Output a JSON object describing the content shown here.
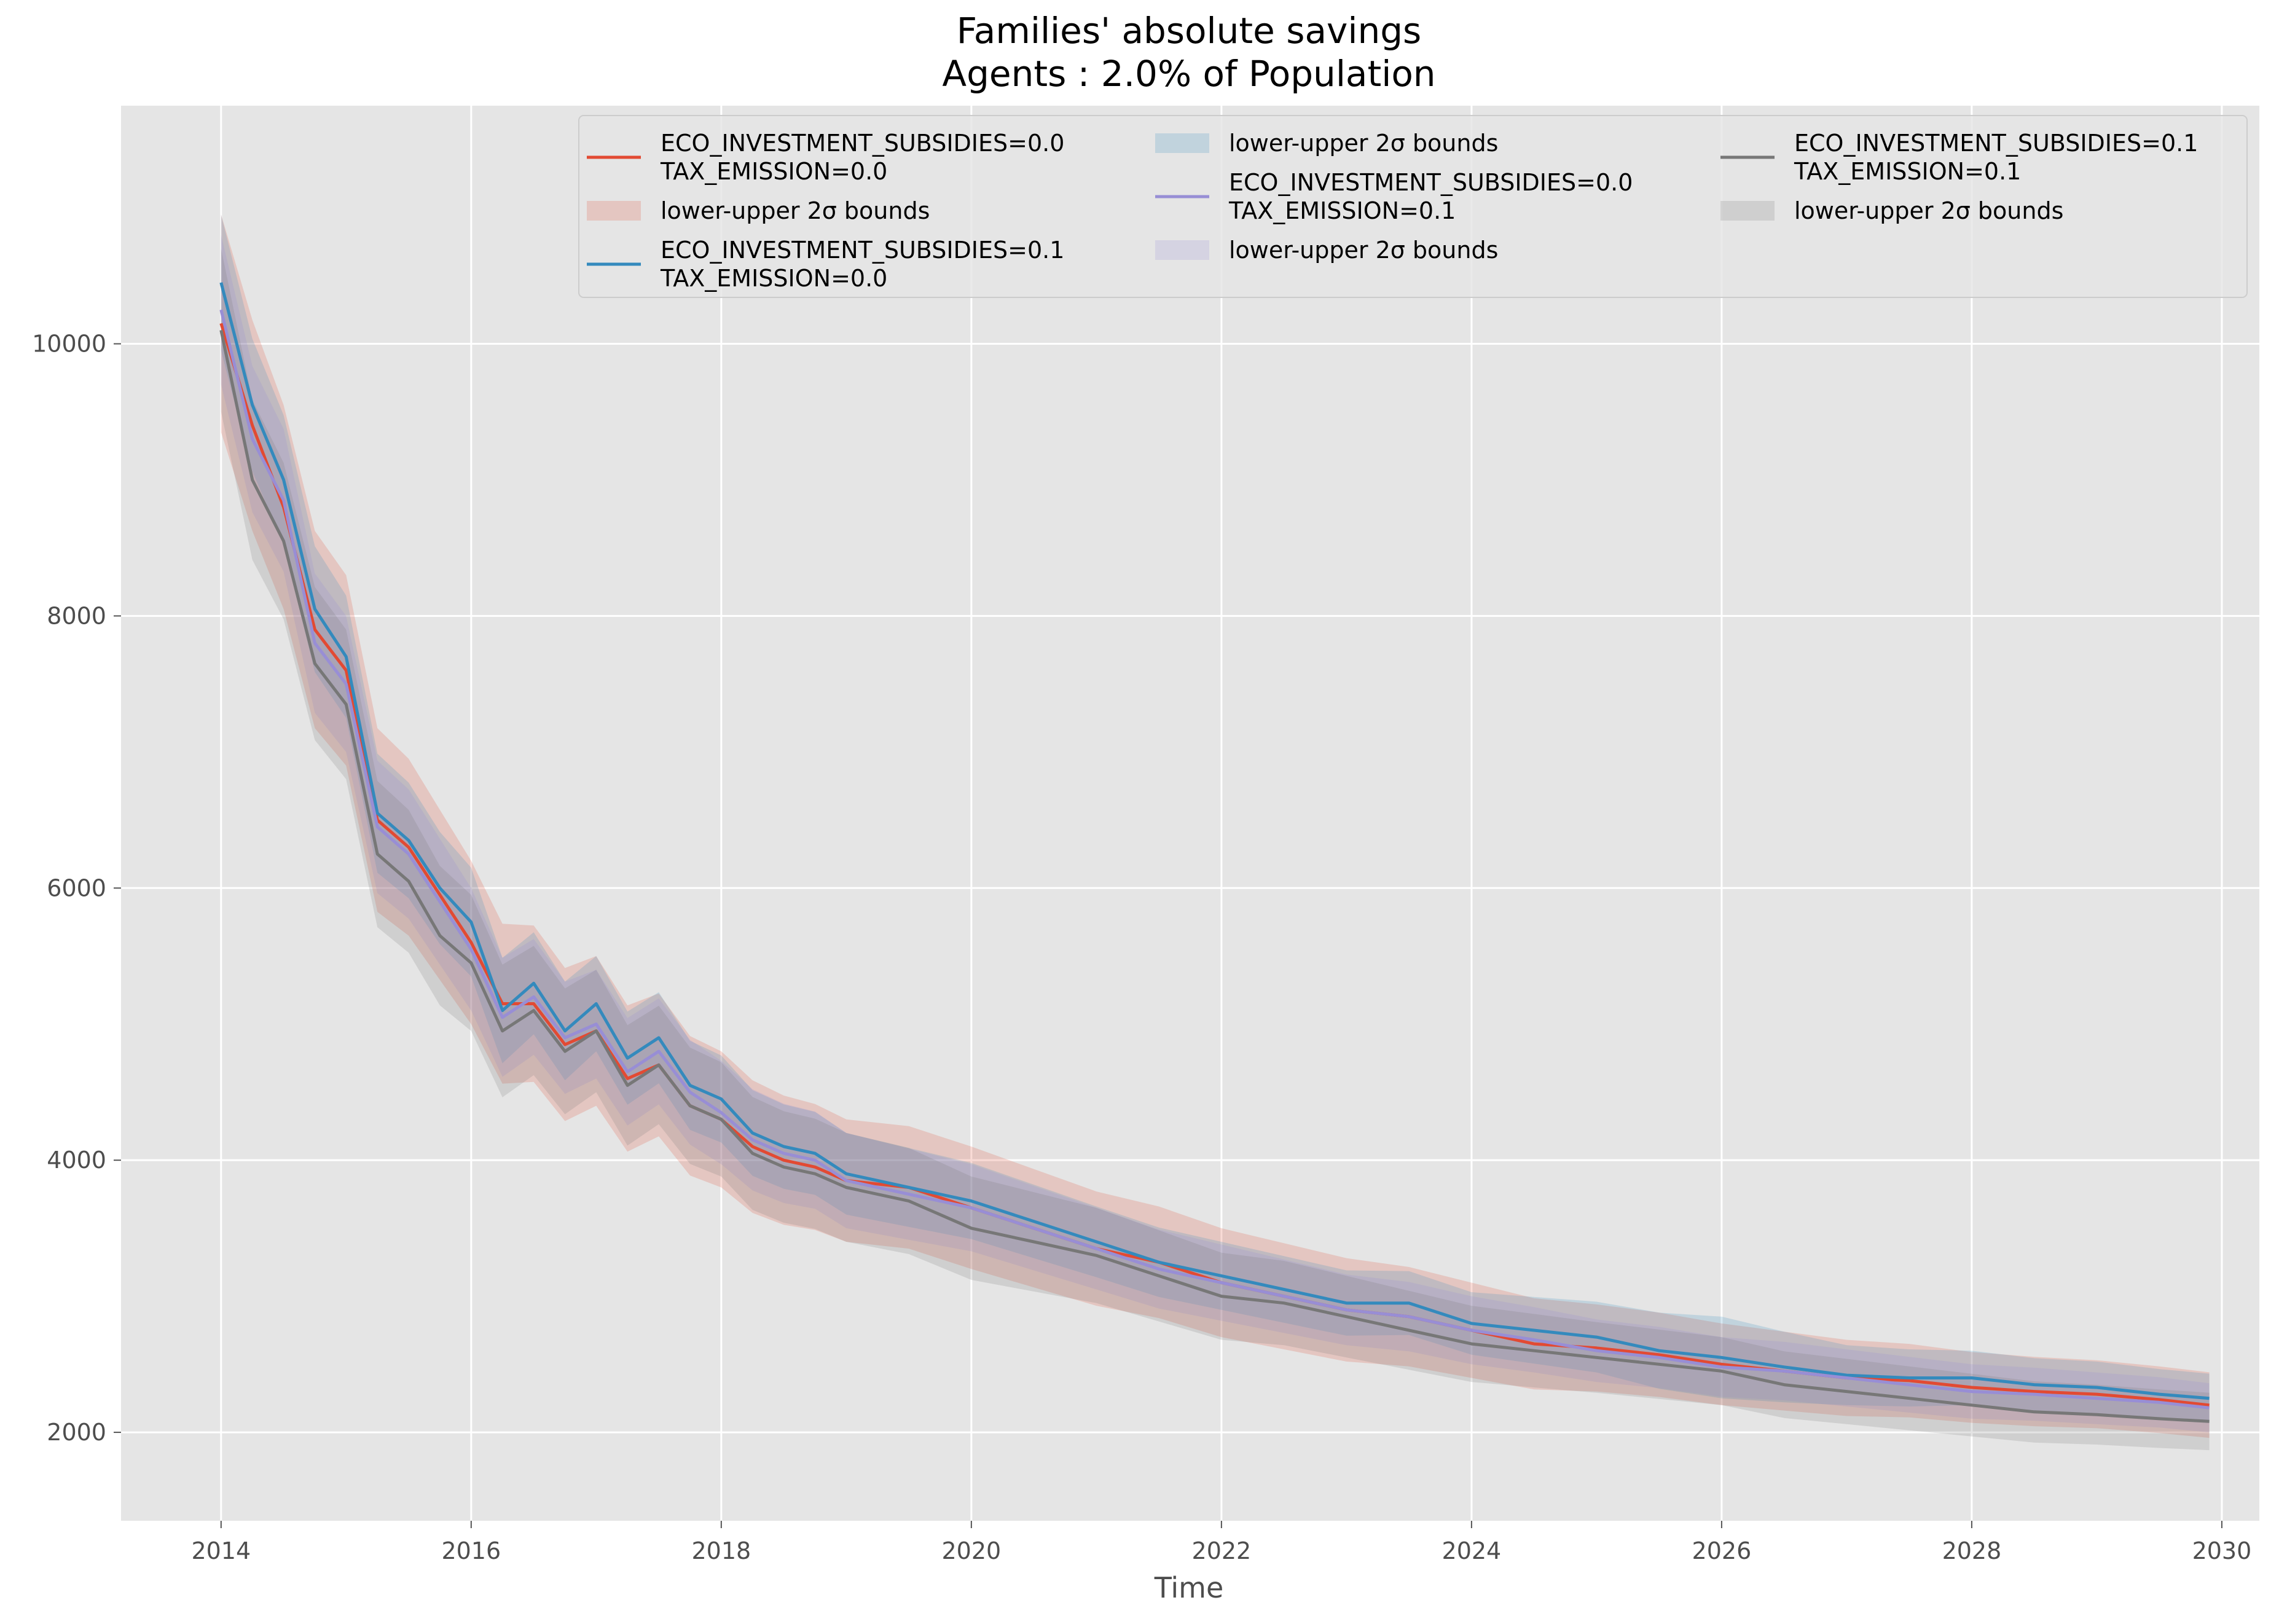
{
  "chart_data": {
    "type": "line",
    "title": "Families' absolute savings",
    "subtitle": "Agents : 2.0% of Population",
    "xlabel": "Time",
    "ylabel": "",
    "xlim": [
      2013.2,
      2030.3
    ],
    "ylim": [
      1350,
      11750
    ],
    "xticks": [
      2014,
      2016,
      2018,
      2020,
      2022,
      2024,
      2026,
      2028,
      2030
    ],
    "yticks": [
      2000,
      4000,
      6000,
      8000,
      10000
    ],
    "grid": true,
    "legend": {
      "placement": "top-right",
      "columns": 3
    },
    "series": [
      {
        "label_lines": [
          "ECO_INVESTMENT_SUBSIDIES=0.0",
          "TAX_EMISSION=0.0"
        ],
        "band_label": "lower-upper 2σ bounds",
        "color": "#e24a33",
        "band_color": "#e24a33",
        "band_opacity": 0.2,
        "band_halfwidth": [
          800,
          700,
          600,
          550,
          500,
          450,
          450,
          420,
          400,
          380,
          350,
          320,
          300,
          280,
          260,
          250,
          240
        ],
        "points": [
          [
            2014.0,
            10150
          ],
          [
            2014.25,
            9400
          ],
          [
            2014.5,
            8800
          ],
          [
            2014.75,
            7900
          ],
          [
            2015.0,
            7600
          ],
          [
            2015.25,
            6500
          ],
          [
            2015.5,
            6300
          ],
          [
            2015.75,
            5950
          ],
          [
            2016.0,
            5600
          ],
          [
            2016.25,
            5150
          ],
          [
            2016.5,
            5150
          ],
          [
            2016.75,
            4850
          ],
          [
            2017.0,
            4950
          ],
          [
            2017.25,
            4600
          ],
          [
            2017.5,
            4700
          ],
          [
            2017.75,
            4400
          ],
          [
            2018.0,
            4300
          ],
          [
            2018.25,
            4100
          ],
          [
            2018.5,
            4000
          ],
          [
            2018.75,
            3950
          ],
          [
            2019.0,
            3850
          ],
          [
            2019.5,
            3800
          ],
          [
            2020.0,
            3650
          ],
          [
            2020.5,
            3500
          ],
          [
            2021.0,
            3350
          ],
          [
            2021.5,
            3250
          ],
          [
            2022.0,
            3100
          ],
          [
            2022.5,
            3000
          ],
          [
            2023.0,
            2900
          ],
          [
            2023.5,
            2850
          ],
          [
            2024.0,
            2750
          ],
          [
            2024.5,
            2650
          ],
          [
            2025.0,
            2620
          ],
          [
            2025.5,
            2570
          ],
          [
            2026.0,
            2500
          ],
          [
            2026.5,
            2450
          ],
          [
            2027.0,
            2400
          ],
          [
            2027.5,
            2380
          ],
          [
            2028.0,
            2330
          ],
          [
            2028.5,
            2300
          ],
          [
            2029.0,
            2280
          ],
          [
            2029.5,
            2240
          ],
          [
            2029.9,
            2200
          ]
        ]
      },
      {
        "label_lines": [
          "ECO_INVESTMENT_SUBSIDIES=0.1",
          "TAX_EMISSION=0.0"
        ],
        "band_label": "lower-upper 2σ bounds",
        "color": "#348abd",
        "band_color": "#348abd",
        "band_opacity": 0.2,
        "band_halfwidth": [
          500,
          450,
          400,
          350,
          320,
          300,
          280,
          260,
          250,
          240,
          230,
          260,
          300,
          220,
          200,
          190,
          180
        ],
        "points": [
          [
            2014.0,
            10450
          ],
          [
            2014.25,
            9550
          ],
          [
            2014.5,
            9000
          ],
          [
            2014.75,
            8050
          ],
          [
            2015.0,
            7700
          ],
          [
            2015.25,
            6550
          ],
          [
            2015.5,
            6350
          ],
          [
            2015.75,
            6000
          ],
          [
            2016.0,
            5750
          ],
          [
            2016.25,
            5100
          ],
          [
            2016.5,
            5300
          ],
          [
            2016.75,
            4950
          ],
          [
            2017.0,
            5150
          ],
          [
            2017.25,
            4750
          ],
          [
            2017.5,
            4900
          ],
          [
            2017.75,
            4550
          ],
          [
            2018.0,
            4450
          ],
          [
            2018.25,
            4200
          ],
          [
            2018.5,
            4100
          ],
          [
            2018.75,
            4050
          ],
          [
            2019.0,
            3900
          ],
          [
            2019.5,
            3800
          ],
          [
            2020.0,
            3700
          ],
          [
            2020.5,
            3550
          ],
          [
            2021.0,
            3400
          ],
          [
            2021.5,
            3250
          ],
          [
            2022.0,
            3150
          ],
          [
            2022.5,
            3050
          ],
          [
            2023.0,
            2950
          ],
          [
            2023.5,
            2950
          ],
          [
            2024.0,
            2800
          ],
          [
            2024.5,
            2750
          ],
          [
            2025.0,
            2700
          ],
          [
            2025.5,
            2600
          ],
          [
            2026.0,
            2550
          ],
          [
            2026.5,
            2480
          ],
          [
            2027.0,
            2420
          ],
          [
            2027.5,
            2400
          ],
          [
            2028.0,
            2400
          ],
          [
            2028.5,
            2350
          ],
          [
            2029.0,
            2330
          ],
          [
            2029.5,
            2280
          ],
          [
            2029.9,
            2250
          ]
        ]
      },
      {
        "label_lines": [
          "ECO_INVESTMENT_SUBSIDIES=0.0",
          "TAX_EMISSION=0.1"
        ],
        "band_label": "lower-upper 2σ bounds",
        "color": "#988ed5",
        "band_color": "#988ed5",
        "band_opacity": 0.2,
        "band_halfwidth": [
          550,
          500,
          450,
          400,
          380,
          350,
          320,
          300,
          280,
          260,
          250,
          230,
          220,
          210,
          200,
          190,
          180
        ],
        "points": [
          [
            2014.0,
            10250
          ],
          [
            2014.25,
            9300
          ],
          [
            2014.5,
            8850
          ],
          [
            2014.75,
            7800
          ],
          [
            2015.0,
            7500
          ],
          [
            2015.25,
            6450
          ],
          [
            2015.5,
            6250
          ],
          [
            2015.75,
            5900
          ],
          [
            2016.0,
            5550
          ],
          [
            2016.25,
            5050
          ],
          [
            2016.5,
            5200
          ],
          [
            2016.75,
            4900
          ],
          [
            2017.0,
            5000
          ],
          [
            2017.25,
            4650
          ],
          [
            2017.5,
            4800
          ],
          [
            2017.75,
            4500
          ],
          [
            2018.0,
            4350
          ],
          [
            2018.25,
            4150
          ],
          [
            2018.5,
            4050
          ],
          [
            2018.75,
            4000
          ],
          [
            2019.0,
            3850
          ],
          [
            2019.5,
            3750
          ],
          [
            2020.0,
            3650
          ],
          [
            2020.5,
            3500
          ],
          [
            2021.0,
            3350
          ],
          [
            2021.5,
            3200
          ],
          [
            2022.0,
            3100
          ],
          [
            2022.5,
            3000
          ],
          [
            2023.0,
            2900
          ],
          [
            2023.5,
            2850
          ],
          [
            2024.0,
            2750
          ],
          [
            2024.5,
            2680
          ],
          [
            2025.0,
            2600
          ],
          [
            2025.5,
            2550
          ],
          [
            2026.0,
            2480
          ],
          [
            2026.5,
            2450
          ],
          [
            2027.0,
            2400
          ],
          [
            2027.5,
            2350
          ],
          [
            2028.0,
            2300
          ],
          [
            2028.5,
            2280
          ],
          [
            2029.0,
            2250
          ],
          [
            2029.5,
            2220
          ],
          [
            2029.9,
            2180
          ]
        ]
      },
      {
        "label_lines": [
          "ECO_INVESTMENT_SUBSIDIES=0.1",
          "TAX_EMISSION=0.1"
        ],
        "band_label": "lower-upper 2σ bounds",
        "color": "#777777",
        "band_color": "#777777",
        "band_opacity": 0.2,
        "band_halfwidth": [
          600,
          550,
          500,
          450,
          420,
          400,
          380,
          350,
          320,
          300,
          280,
          260,
          250,
          240,
          230,
          220,
          210
        ],
        "points": [
          [
            2014.0,
            10100
          ],
          [
            2014.25,
            9000
          ],
          [
            2014.5,
            8550
          ],
          [
            2014.75,
            7650
          ],
          [
            2015.0,
            7350
          ],
          [
            2015.25,
            6250
          ],
          [
            2015.5,
            6050
          ],
          [
            2015.75,
            5650
          ],
          [
            2016.0,
            5450
          ],
          [
            2016.25,
            4950
          ],
          [
            2016.5,
            5100
          ],
          [
            2016.75,
            4800
          ],
          [
            2017.0,
            4950
          ],
          [
            2017.25,
            4550
          ],
          [
            2017.5,
            4700
          ],
          [
            2017.75,
            4400
          ],
          [
            2018.0,
            4300
          ],
          [
            2018.25,
            4050
          ],
          [
            2018.5,
            3950
          ],
          [
            2018.75,
            3900
          ],
          [
            2019.0,
            3800
          ],
          [
            2019.5,
            3700
          ],
          [
            2020.0,
            3500
          ],
          [
            2020.5,
            3400
          ],
          [
            2021.0,
            3300
          ],
          [
            2021.5,
            3150
          ],
          [
            2022.0,
            3000
          ],
          [
            2022.5,
            2950
          ],
          [
            2023.0,
            2850
          ],
          [
            2023.5,
            2750
          ],
          [
            2024.0,
            2650
          ],
          [
            2024.5,
            2600
          ],
          [
            2025.0,
            2550
          ],
          [
            2025.5,
            2500
          ],
          [
            2026.0,
            2450
          ],
          [
            2026.5,
            2350
          ],
          [
            2027.0,
            2300
          ],
          [
            2027.5,
            2250
          ],
          [
            2028.0,
            2200
          ],
          [
            2028.5,
            2150
          ],
          [
            2029.0,
            2130
          ],
          [
            2029.5,
            2100
          ],
          [
            2029.9,
            2080
          ]
        ]
      }
    ]
  }
}
